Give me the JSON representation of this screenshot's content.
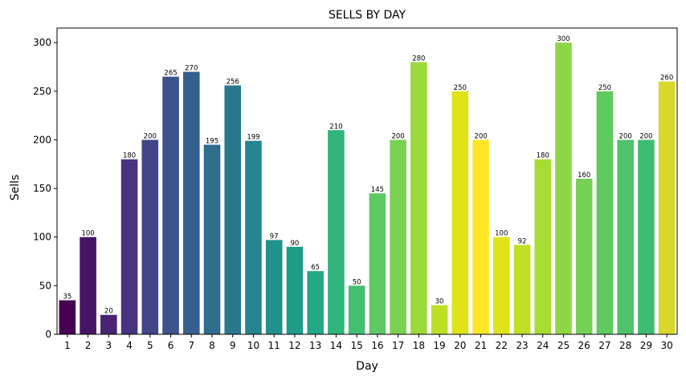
{
  "chart_data": {
    "type": "bar",
    "title": "SELLS BY DAY",
    "xlabel": "Day",
    "ylabel": "Sells",
    "ylim": [
      0,
      315
    ],
    "yticks": [
      0,
      50,
      100,
      150,
      200,
      250,
      300
    ],
    "grid": false,
    "legend": "none",
    "colormap": "viridis",
    "categories": [
      "1",
      "2",
      "3",
      "4",
      "5",
      "6",
      "7",
      "8",
      "9",
      "10",
      "11",
      "12",
      "13",
      "14",
      "15",
      "16",
      "17",
      "18",
      "19",
      "20",
      "21",
      "22",
      "23",
      "24",
      "25",
      "26",
      "27",
      "28",
      "29",
      "30"
    ],
    "values": [
      35,
      100,
      20,
      180,
      200,
      265,
      270,
      195,
      256,
      199,
      97,
      90,
      65,
      210,
      50,
      145,
      200,
      280,
      30,
      250,
      200,
      100,
      92,
      180,
      300,
      160,
      250,
      200,
      200,
      260
    ],
    "colors": [
      "#440154",
      "#471365",
      "#482475",
      "#463480",
      "#414487",
      "#3b528b",
      "#355f8d",
      "#2f6c8e",
      "#2a788e",
      "#25848e",
      "#21918c",
      "#1e9c89",
      "#22a884",
      "#2fb47c",
      "#44bf70",
      "#5ec962",
      "#7ad151",
      "#9bd93c",
      "#bddf26",
      "#dfe318",
      "#fde725",
      "#e0e31a",
      "#c2df23",
      "#a8db34",
      "#8ed645",
      "#75d054",
      "#60ca60",
      "#4ec36b",
      "#3fbc73",
      "#d8d72a"
    ]
  }
}
